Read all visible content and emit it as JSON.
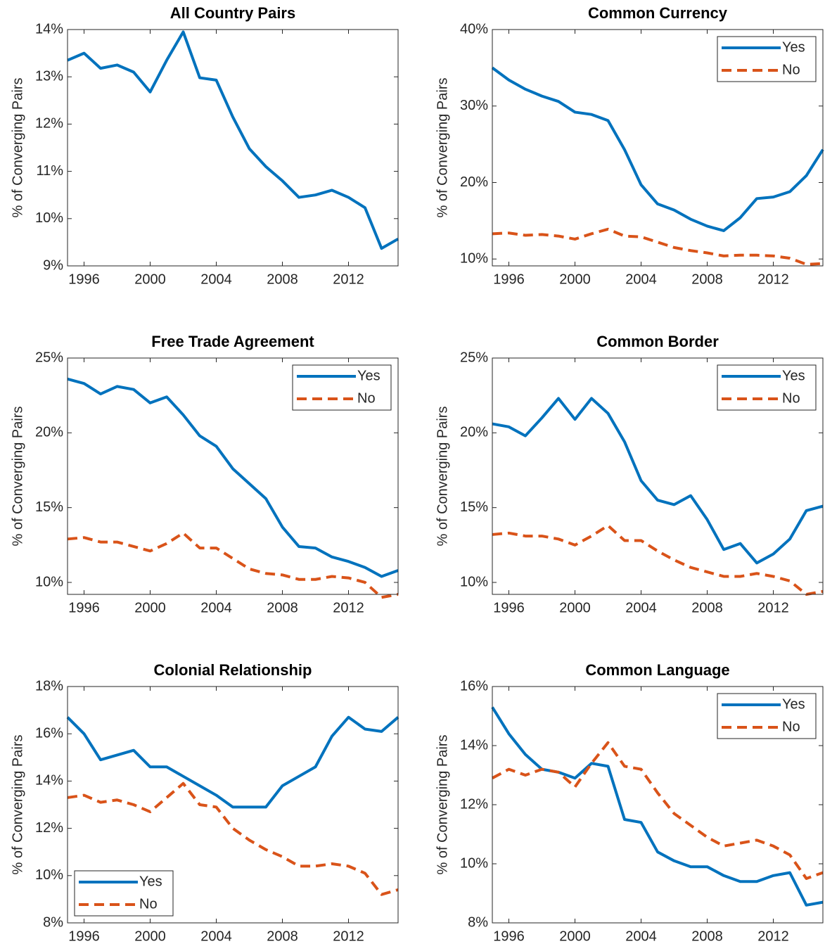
{
  "chart_data": [
    {
      "type": "line",
      "title": "All Country Pairs",
      "y_label": "% of Converging Pairs",
      "x": [
        1995,
        1996,
        1997,
        1998,
        1999,
        2000,
        2001,
        2002,
        2003,
        2004,
        2005,
        2006,
        2007,
        2008,
        2009,
        2010,
        2011,
        2012,
        2013,
        2014,
        2015
      ],
      "values": [
        13.35,
        13.5,
        13.18,
        13.25,
        13.1,
        12.68,
        13.35,
        13.95,
        12.98,
        12.93,
        12.15,
        11.48,
        11.1,
        10.8,
        10.45,
        10.5,
        10.6,
        10.45,
        10.23,
        9.37,
        9.57
      ],
      "color": "#0072BD",
      "xlim": [
        1995,
        2015
      ],
      "xticks": [
        1996,
        2000,
        2004,
        2008,
        2012
      ],
      "ylim": [
        9,
        14
      ],
      "yticks": [
        {
          "value": 9,
          "label": "9%"
        },
        {
          "value": 10,
          "label": "10%"
        },
        {
          "value": 11,
          "label": "11%"
        },
        {
          "value": 12,
          "label": "12%"
        },
        {
          "value": 13,
          "label": "13%"
        },
        {
          "value": 14,
          "label": "14%"
        }
      ]
    },
    {
      "type": "line",
      "title": "Common Currency",
      "y_label": "% of Converging Pairs",
      "x": [
        1995,
        1996,
        1997,
        1998,
        1999,
        2000,
        2001,
        2002,
        2003,
        2004,
        2005,
        2006,
        2007,
        2008,
        2009,
        2010,
        2011,
        2012,
        2013,
        2014,
        2015
      ],
      "series": [
        {
          "name": "Yes",
          "color": "#0072BD",
          "line_style": "solid",
          "values": [
            35,
            33.4,
            32.2,
            31.3,
            30.6,
            29.2,
            28.9,
            28.1,
            24.3,
            19.7,
            17.2,
            16.4,
            15.2,
            14.3,
            13.7,
            15.4,
            17.9,
            18.1,
            18.8,
            20.9,
            24.3
          ]
        },
        {
          "name": "No",
          "color": "#D95319",
          "line_style": "dashed",
          "values": [
            13.3,
            13.4,
            13.1,
            13.2,
            13.0,
            12.6,
            13.3,
            13.9,
            13.0,
            12.9,
            12.2,
            11.5,
            11.1,
            10.8,
            10.4,
            10.5,
            10.5,
            10.4,
            10.1,
            9.3,
            9.4
          ]
        }
      ],
      "legend": "northeast",
      "xlim": [
        1995,
        2015
      ],
      "xticks": [
        1996,
        2000,
        2004,
        2008,
        2012
      ],
      "ylim": [
        9.1,
        40
      ],
      "yticks": [
        {
          "value": 10,
          "label": "10%"
        },
        {
          "value": 20,
          "label": "20%"
        },
        {
          "value": 30,
          "label": "30%"
        },
        {
          "value": 40,
          "label": "40%"
        }
      ]
    },
    {
      "type": "line",
      "title": "Free Trade Agreement",
      "y_label": "% of Converging Pairs",
      "x": [
        1995,
        1996,
        1997,
        1998,
        1999,
        2000,
        2001,
        2002,
        2003,
        2004,
        2005,
        2006,
        2007,
        2008,
        2009,
        2010,
        2011,
        2012,
        2013,
        2014,
        2015
      ],
      "series": [
        {
          "name": "Yes",
          "color": "#0072BD",
          "line_style": "solid",
          "values": [
            23.6,
            23.3,
            22.6,
            23.1,
            22.9,
            22.0,
            22.4,
            21.2,
            19.8,
            19.1,
            17.6,
            16.6,
            15.6,
            13.7,
            12.4,
            12.3,
            11.7,
            11.4,
            11.0,
            10.4,
            10.8
          ]
        },
        {
          "name": "No",
          "color": "#D95319",
          "line_style": "dashed",
          "values": [
            12.9,
            13.0,
            12.7,
            12.7,
            12.4,
            12.1,
            12.6,
            13.3,
            12.3,
            12.3,
            11.6,
            10.9,
            10.6,
            10.5,
            10.2,
            10.2,
            10.4,
            10.3,
            10.0,
            9.0,
            9.2
          ]
        }
      ],
      "legend": "northeast",
      "xlim": [
        1995,
        2015
      ],
      "xticks": [
        1996,
        2000,
        2004,
        2008,
        2012
      ],
      "ylim": [
        9.2,
        25
      ],
      "yticks": [
        {
          "value": 10,
          "label": "10%"
        },
        {
          "value": 15,
          "label": "15%"
        },
        {
          "value": 20,
          "label": "20%"
        },
        {
          "value": 25,
          "label": "25%"
        }
      ]
    },
    {
      "type": "line",
      "title": "Common Border",
      "y_label": "% of Converging Pairs",
      "x": [
        1995,
        1996,
        1997,
        1998,
        1999,
        2000,
        2001,
        2002,
        2003,
        2004,
        2005,
        2006,
        2007,
        2008,
        2009,
        2010,
        2011,
        2012,
        2013,
        2014,
        2015
      ],
      "series": [
        {
          "name": "Yes",
          "color": "#0072BD",
          "line_style": "solid",
          "values": [
            20.6,
            20.4,
            19.8,
            21.0,
            22.3,
            20.9,
            22.3,
            21.3,
            19.4,
            16.8,
            15.5,
            15.2,
            15.8,
            14.2,
            12.2,
            12.6,
            11.3,
            11.9,
            12.9,
            14.8,
            15.1
          ]
        },
        {
          "name": "No",
          "color": "#D95319",
          "line_style": "dashed",
          "values": [
            13.2,
            13.3,
            13.1,
            13.1,
            12.9,
            12.5,
            13.1,
            13.8,
            12.8,
            12.8,
            12.1,
            11.5,
            11.0,
            10.7,
            10.4,
            10.4,
            10.6,
            10.4,
            10.1,
            9.2,
            9.4
          ]
        }
      ],
      "legend": "northeast",
      "xlim": [
        1995,
        2015
      ],
      "xticks": [
        1996,
        2000,
        2004,
        2008,
        2012
      ],
      "ylim": [
        9.2,
        25
      ],
      "yticks": [
        {
          "value": 10,
          "label": "10%"
        },
        {
          "value": 15,
          "label": "15%"
        },
        {
          "value": 20,
          "label": "20%"
        },
        {
          "value": 25,
          "label": "25%"
        }
      ]
    },
    {
      "type": "line",
      "title": "Colonial Relationship",
      "y_label": "% of Converging Pairs",
      "x": [
        1995,
        1996,
        1997,
        1998,
        1999,
        2000,
        2001,
        2002,
        2003,
        2004,
        2005,
        2006,
        2007,
        2008,
        2009,
        2010,
        2011,
        2012,
        2013,
        2014,
        2015
      ],
      "series": [
        {
          "name": "Yes",
          "color": "#0072BD",
          "line_style": "solid",
          "values": [
            16.7,
            16.0,
            14.9,
            15.1,
            15.3,
            14.6,
            14.6,
            14.2,
            13.8,
            13.4,
            12.9,
            12.9,
            12.9,
            13.8,
            14.2,
            14.6,
            15.9,
            16.7,
            16.2,
            16.1,
            16.7
          ]
        },
        {
          "name": "No",
          "color": "#D95319",
          "line_style": "dashed",
          "values": [
            13.3,
            13.4,
            13.1,
            13.2,
            13.0,
            12.7,
            13.3,
            13.9,
            13.0,
            12.9,
            12.0,
            11.5,
            11.1,
            10.8,
            10.4,
            10.4,
            10.5,
            10.4,
            10.1,
            9.2,
            9.4
          ]
        }
      ],
      "legend": "southwest",
      "xlim": [
        1995,
        2015
      ],
      "xticks": [
        1996,
        2000,
        2004,
        2008,
        2012
      ],
      "ylim": [
        8,
        18
      ],
      "yticks": [
        {
          "value": 8,
          "label": "8%"
        },
        {
          "value": 10,
          "label": "10%"
        },
        {
          "value": 12,
          "label": "12%"
        },
        {
          "value": 14,
          "label": "14%"
        },
        {
          "value": 16,
          "label": "16%"
        },
        {
          "value": 18,
          "label": "18%"
        }
      ]
    },
    {
      "type": "line",
      "title": "Common Language",
      "y_label": "% of Converging Pairs",
      "x": [
        1995,
        1996,
        1997,
        1998,
        1999,
        2000,
        2001,
        2002,
        2003,
        2004,
        2005,
        2006,
        2007,
        2008,
        2009,
        2010,
        2011,
        2012,
        2013,
        2014,
        2015
      ],
      "series": [
        {
          "name": "Yes",
          "color": "#0072BD",
          "line_style": "solid",
          "values": [
            15.3,
            14.4,
            13.7,
            13.2,
            13.1,
            12.9,
            13.4,
            13.3,
            11.5,
            11.4,
            10.4,
            10.1,
            9.9,
            9.9,
            9.6,
            9.4,
            9.4,
            9.6,
            9.7,
            8.6,
            8.7
          ]
        },
        {
          "name": "No",
          "color": "#D95319",
          "line_style": "dashed",
          "values": [
            12.9,
            13.2,
            13.0,
            13.2,
            13.1,
            12.6,
            13.4,
            14.1,
            13.3,
            13.2,
            12.4,
            11.7,
            11.3,
            10.9,
            10.6,
            10.7,
            10.8,
            10.6,
            10.3,
            9.5,
            9.7
          ]
        }
      ],
      "legend": "northeast",
      "xlim": [
        1995,
        2015
      ],
      "xticks": [
        1996,
        2000,
        2004,
        2008,
        2012
      ],
      "ylim": [
        8,
        16
      ],
      "yticks": [
        {
          "value": 8,
          "label": "8%"
        },
        {
          "value": 10,
          "label": "10%"
        },
        {
          "value": 12,
          "label": "12%"
        },
        {
          "value": 14,
          "label": "14%"
        },
        {
          "value": 16,
          "label": "16%"
        }
      ]
    }
  ]
}
